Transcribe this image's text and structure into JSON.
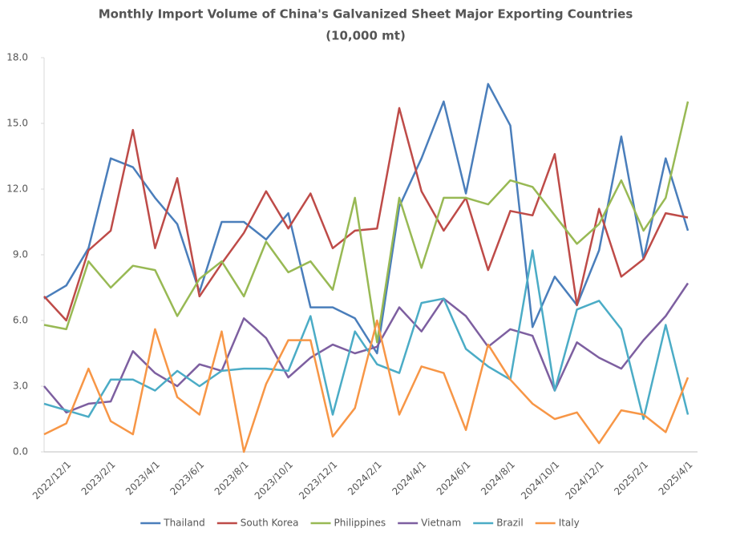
{
  "chart_data": {
    "type": "line",
    "title": "Monthly Import Volume of China's Galvanized Sheet Major Exporting Countries",
    "subtitle": "(10,000 mt)",
    "categories": [
      null,
      "2022/12/1",
      null,
      "2023/2/1",
      null,
      "2023/4/1",
      null,
      "2023/6/1",
      null,
      "2023/8/1",
      null,
      "2023/10/1",
      null,
      "2023/12/1",
      null,
      "2024/2/1",
      null,
      "2024/4/1",
      null,
      "2024/6/1",
      null,
      "2024/8/1",
      null,
      "2024/10/1",
      null,
      "2024/12/1",
      null,
      "2025/2/1",
      null,
      "2025/4/1"
    ],
    "series": [
      {
        "name": "Thailand",
        "color": "#4a7ebb",
        "values": [
          7.0,
          7.6,
          9.3,
          13.4,
          13.0,
          11.6,
          10.4,
          7.3,
          10.5,
          10.5,
          9.7,
          10.9,
          6.6,
          6.6,
          6.1,
          4.5,
          11.2,
          13.4,
          16.0,
          11.8,
          16.8,
          14.9,
          5.7,
          8.0,
          6.7,
          9.2,
          14.4,
          8.8,
          13.4,
          10.1
        ]
      },
      {
        "name": "South Korea",
        "color": "#be4b48",
        "values": [
          7.1,
          6.0,
          9.2,
          10.1,
          14.7,
          9.3,
          12.5,
          7.1,
          8.6,
          10.0,
          11.9,
          10.2,
          11.8,
          9.3,
          10.1,
          10.2,
          15.7,
          11.9,
          10.1,
          11.6,
          8.3,
          11.0,
          10.8,
          13.6,
          6.7,
          11.1,
          8.0,
          8.8,
          10.9,
          10.7
        ]
      },
      {
        "name": "Philippines",
        "color": "#98b954",
        "values": [
          5.8,
          5.6,
          8.7,
          7.5,
          8.5,
          8.3,
          6.2,
          7.9,
          8.7,
          7.1,
          9.6,
          8.2,
          8.7,
          7.4,
          11.6,
          5.0,
          11.6,
          8.4,
          11.6,
          11.6,
          11.3,
          12.4,
          12.1,
          10.8,
          9.5,
          10.4,
          12.4,
          10.1,
          11.6,
          16.0
        ]
      },
      {
        "name": "Vietnam",
        "color": "#7d5fa0",
        "values": [
          3.0,
          1.8,
          2.2,
          2.3,
          4.6,
          3.6,
          3.0,
          4.0,
          3.7,
          6.1,
          5.2,
          3.4,
          4.3,
          4.9,
          4.5,
          4.8,
          6.6,
          5.5,
          7.0,
          6.2,
          4.8,
          5.6,
          5.3,
          2.8,
          5.0,
          4.3,
          3.8,
          5.1,
          6.2,
          7.7
        ]
      },
      {
        "name": "Brazil",
        "color": "#4bacc6",
        "values": [
          2.2,
          1.9,
          1.6,
          3.3,
          3.3,
          2.8,
          3.7,
          3.0,
          3.7,
          3.8,
          3.8,
          3.7,
          6.2,
          1.7,
          5.5,
          4.0,
          3.6,
          6.8,
          7.0,
          4.7,
          3.9,
          3.3,
          9.2,
          2.8,
          6.5,
          6.9,
          5.6,
          1.5,
          5.8,
          1.7
        ]
      },
      {
        "name": "Italy",
        "color": "#f79646",
        "values": [
          0.8,
          1.3,
          3.8,
          1.4,
          0.8,
          5.6,
          2.5,
          1.7,
          5.5,
          0.0,
          3.1,
          5.1,
          5.1,
          0.7,
          2.0,
          6.0,
          1.7,
          3.9,
          3.6,
          1.0,
          4.9,
          3.3,
          2.2,
          1.5,
          1.8,
          0.4,
          1.9,
          1.7,
          0.9,
          3.4
        ]
      }
    ],
    "ylim": [
      0,
      18
    ],
    "yticks": [
      {
        "value": 0,
        "label": "0.0"
      },
      {
        "value": 3,
        "label": "3.0"
      },
      {
        "value": 6,
        "label": "6.0"
      },
      {
        "value": 9,
        "label": "9.0"
      },
      {
        "value": 12,
        "label": "12.0"
      },
      {
        "value": 15,
        "label": "15.0"
      },
      {
        "value": 18,
        "label": "18.0"
      }
    ],
    "grid": false,
    "legend": "bottom"
  }
}
